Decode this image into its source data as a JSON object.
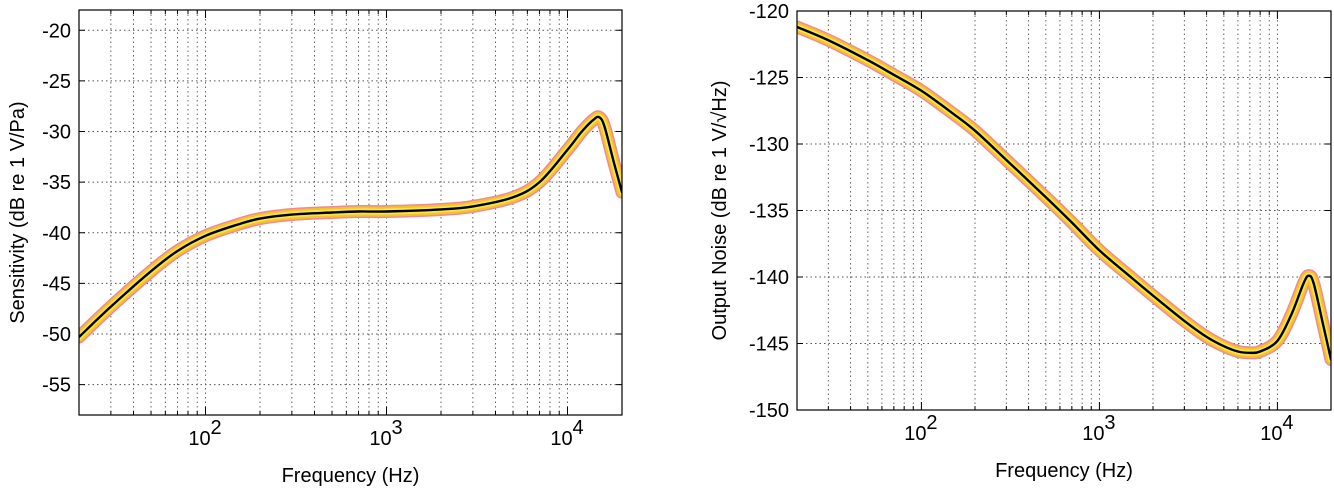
{
  "chart_data": [
    {
      "type": "line",
      "xlabel": "Frequency (Hz)",
      "ylabel": "Sensitivity (dB re 1 V/Pa)",
      "xscale": "log",
      "xlim": [
        20,
        20000
      ],
      "ylim": [
        -58,
        -18
      ],
      "yticks": [
        -20,
        -25,
        -30,
        -35,
        -40,
        -45,
        -50,
        -55
      ],
      "ytick_labels": [
        "-20",
        "-25",
        "-30",
        "-35",
        "-40",
        "-45",
        "-50",
        "-55"
      ],
      "xticks": [
        100,
        1000,
        10000
      ],
      "xtick_labels": [
        "10",
        "10",
        "10"
      ],
      "xtick_exponents": [
        "2",
        "3",
        "4"
      ],
      "grid": true,
      "series": [
        {
          "x": [
            20,
            30,
            50,
            70,
            100,
            150,
            200,
            300,
            500,
            700,
            1000,
            2000,
            3000,
            5000,
            7000,
            10000,
            12000,
            14000,
            15000,
            16000,
            18000,
            20000
          ],
          "values": [
            -50.3,
            -47.3,
            -43.8,
            -41.8,
            -40.3,
            -39.2,
            -38.6,
            -38.2,
            -38.0,
            -37.9,
            -37.9,
            -37.7,
            -37.4,
            -36.5,
            -35.0,
            -31.8,
            -30.0,
            -28.8,
            -28.6,
            -29.5,
            -33.0,
            -36.0
          ]
        }
      ]
    },
    {
      "type": "line",
      "xlabel": "Frequency (Hz)",
      "ylabel": "Output Noise (dB re 1 V/√Hz)",
      "xscale": "log",
      "xlim": [
        20,
        20000
      ],
      "ylim": [
        -150,
        -120
      ],
      "yticks": [
        -120,
        -125,
        -130,
        -135,
        -140,
        -145,
        -150
      ],
      "ytick_labels": [
        "-120",
        "-125",
        "-130",
        "-135",
        "-140",
        "-145",
        "-150"
      ],
      "xticks": [
        100,
        1000,
        10000
      ],
      "xtick_labels": [
        "10",
        "10",
        "10"
      ],
      "xtick_exponents": [
        "2",
        "3",
        "4"
      ],
      "grid": true,
      "series": [
        {
          "x": [
            20,
            30,
            50,
            70,
            100,
            150,
            200,
            300,
            500,
            700,
            1000,
            1500,
            2000,
            3000,
            4000,
            5000,
            6000,
            7000,
            8000,
            10000,
            12000,
            14000,
            15000,
            16000,
            18000,
            20000
          ],
          "values": [
            -121.2,
            -122.2,
            -123.7,
            -124.8,
            -126.0,
            -127.7,
            -129.0,
            -131.2,
            -134.0,
            -135.9,
            -138.0,
            -140.0,
            -141.4,
            -143.3,
            -144.5,
            -145.2,
            -145.6,
            -145.7,
            -145.6,
            -144.8,
            -142.8,
            -140.5,
            -139.9,
            -140.5,
            -143.5,
            -146.2
          ]
        }
      ]
    }
  ]
}
